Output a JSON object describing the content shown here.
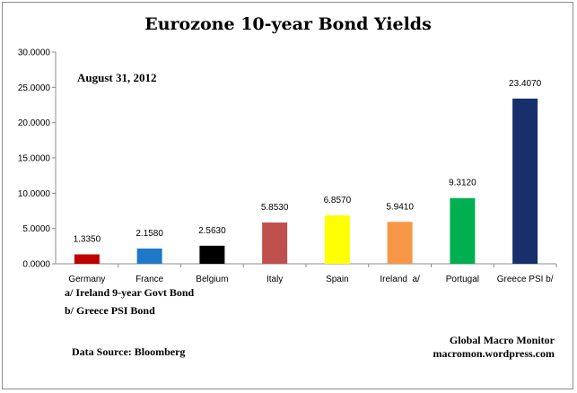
{
  "chart_data": {
    "type": "bar",
    "title": "Eurozone 10-year Bond Yields",
    "date_label": "August 31, 2012",
    "categories": [
      "Germany",
      "France",
      "Belgium",
      "Italy",
      "Spain",
      "Ireland  a/",
      "Portugal",
      "Greece PSI b/"
    ],
    "values": [
      1.335,
      2.158,
      2.563,
      5.853,
      6.857,
      5.941,
      9.312,
      23.407
    ],
    "value_labels": [
      "1.3350",
      "2.1580",
      "2.5630",
      "5.8530",
      "6.8570",
      "5.9410",
      "9.3120",
      "23.4070"
    ],
    "colors": [
      "#c00000",
      "#1f78c8",
      "#000000",
      "#c0504d",
      "#ffff00",
      "#f79646",
      "#00b050",
      "#17306b"
    ],
    "ylim": [
      0,
      30
    ],
    "yticks": [
      "0.0000",
      "5.0000",
      "10.0000",
      "15.0000",
      "20.0000",
      "25.0000",
      "30.0000"
    ],
    "grid": false,
    "notes": [
      "a/  Ireland 9-year Govt Bond",
      "b/  Greece PSI Bond"
    ],
    "source": "Data Source:  Bloomberg",
    "credit_line1": "Global Macro Monitor",
    "credit_line2": "macromon.wordpress.com"
  }
}
